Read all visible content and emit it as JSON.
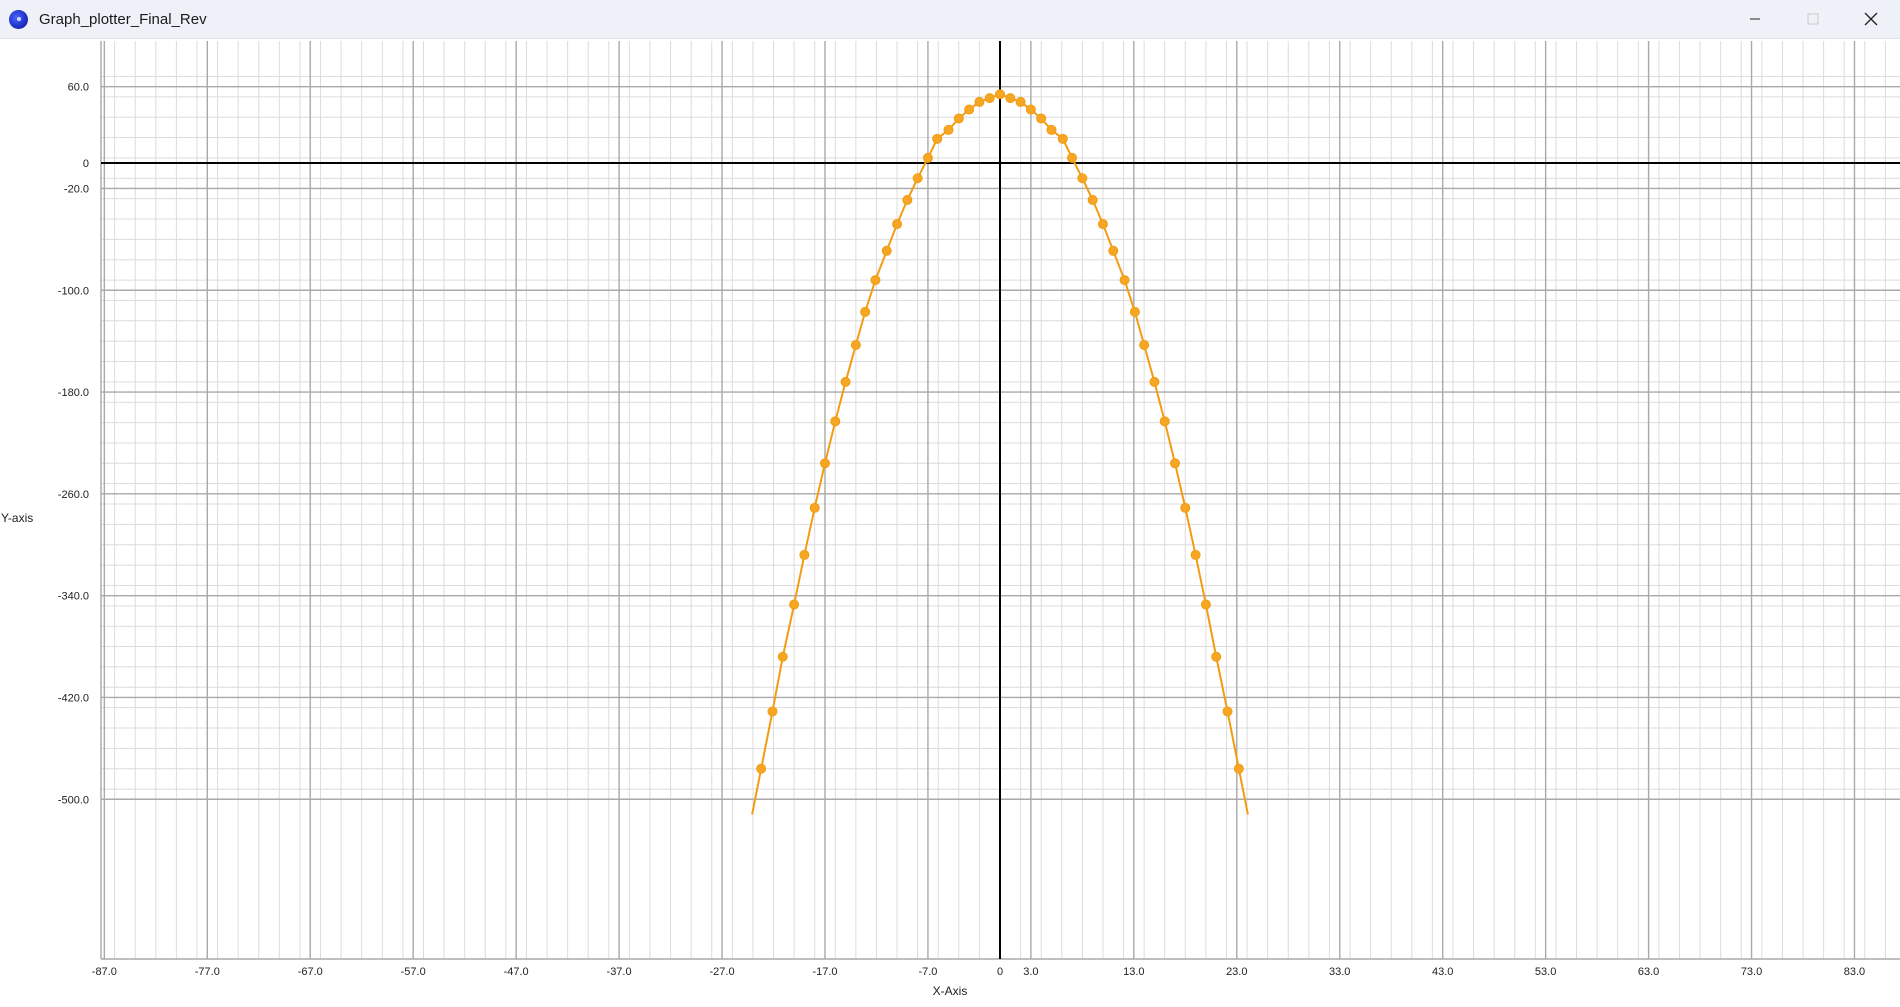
{
  "window": {
    "title": "Graph_plotter_Final_Rev",
    "icon": "app-icon",
    "controls": {
      "minimize": "minimize-icon",
      "maximize": "maximize-icon",
      "close": "close-icon"
    }
  },
  "colors": {
    "curve": "#f39c12",
    "point_fill": "#f5a623",
    "axis": "#000000",
    "major_grid": "#a9a9a9",
    "minor_grid": "#dcdcdc"
  },
  "chart_data": {
    "type": "scatter",
    "xlabel": "X-Axis",
    "ylabel": "Y-axis",
    "xlim": [
      -89,
      88
    ],
    "ylim": [
      -502,
      70
    ],
    "grid": true,
    "x_ticks": [
      -87.0,
      -77.0,
      -67.0,
      -57.0,
      -47.0,
      -37.0,
      -27.0,
      -17.0,
      -7.0,
      0,
      3.0,
      13.0,
      23.0,
      33.0,
      43.0,
      53.0,
      63.0,
      73.0,
      83.0
    ],
    "x_tick_labels": [
      "-87.0",
      "-77.0",
      "-67.0",
      "-57.0",
      "-47.0",
      "-37.0",
      "-27.0",
      "-17.0",
      "-7.0",
      "0",
      "3.0",
      "13.0",
      "23.0",
      "33.0",
      "43.0",
      "53.0",
      "63.0",
      "73.0",
      "83.0"
    ],
    "y_ticks": [
      60,
      0,
      -20,
      -100,
      -180,
      -260,
      -340,
      -420,
      -500
    ],
    "y_tick_labels": [
      "60.0",
      "0",
      "-20.0",
      "-100.0",
      "-180.0",
      "-260.0",
      "-340.0",
      "-420.0",
      "-500.0"
    ],
    "series": [
      {
        "x": [
          -23.2,
          -22.1,
          -21.1,
          -20.0,
          -19.0,
          -18.0,
          -17.0,
          -16.0,
          -15.0,
          -14.0,
          -13.1,
          -12.1,
          -11.0,
          -10.0,
          -9.0,
          -8.0,
          -7.0,
          -6.1,
          -5.0,
          -4.0,
          -3.0,
          -2.0,
          -1.0,
          0,
          1.0,
          2.0,
          3.0,
          4.0,
          5.0,
          6.1,
          7.0,
          8.0,
          9.0,
          10.0,
          11.0,
          12.1,
          13.1,
          14.0,
          15.0,
          16.0,
          17.0,
          18.0,
          19.0,
          20.0,
          21.0,
          22.1,
          23.2
        ],
        "y": [
          -476,
          -431,
          -388,
          -347,
          -308,
          -271,
          -236,
          -203,
          -172,
          -143,
          -117,
          -92,
          -69,
          -48,
          -29,
          -12,
          4,
          19,
          26,
          35,
          42,
          48,
          51,
          54,
          51,
          48,
          42,
          35,
          26,
          19,
          4,
          -12,
          -29,
          -48,
          -69,
          -92,
          -117,
          -143,
          -172,
          -203,
          -236,
          -271,
          -308,
          -347,
          -388,
          -431,
          -476
        ]
      }
    ]
  }
}
